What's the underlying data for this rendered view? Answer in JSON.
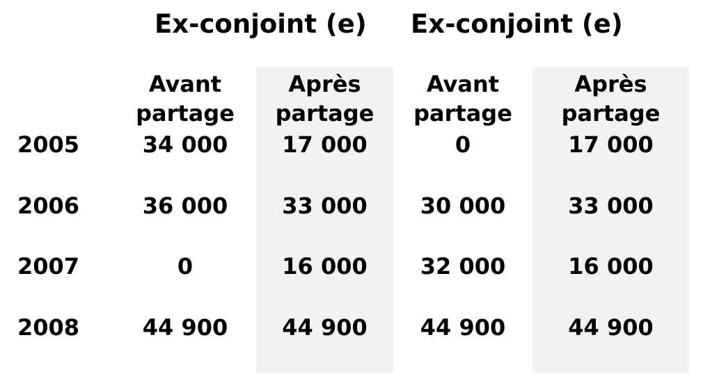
{
  "table": {
    "groups": [
      "Ex-conjoint (e)",
      "Ex-conjoint (e)"
    ],
    "subheaders": [
      {
        "line1": "Avant",
        "line2": "partage"
      },
      {
        "line1": "Après",
        "line2": "partage"
      },
      {
        "line1": "Avant",
        "line2": "partage"
      },
      {
        "line1": "Après",
        "line2": "partage"
      }
    ],
    "rows": [
      {
        "year": "2005",
        "values": [
          "34 000",
          "17 000",
          "0",
          "17 000"
        ]
      },
      {
        "year": "2006",
        "values": [
          "36 000",
          "33 000",
          "30 000",
          "33 000"
        ]
      },
      {
        "year": "2007",
        "values": [
          "0",
          "16 000",
          "32 000",
          "16 000"
        ]
      },
      {
        "year": "2008",
        "values": [
          "44 900",
          "44 900",
          "44 900",
          "44 900"
        ]
      }
    ],
    "shade_color": "#f2f2f2"
  }
}
